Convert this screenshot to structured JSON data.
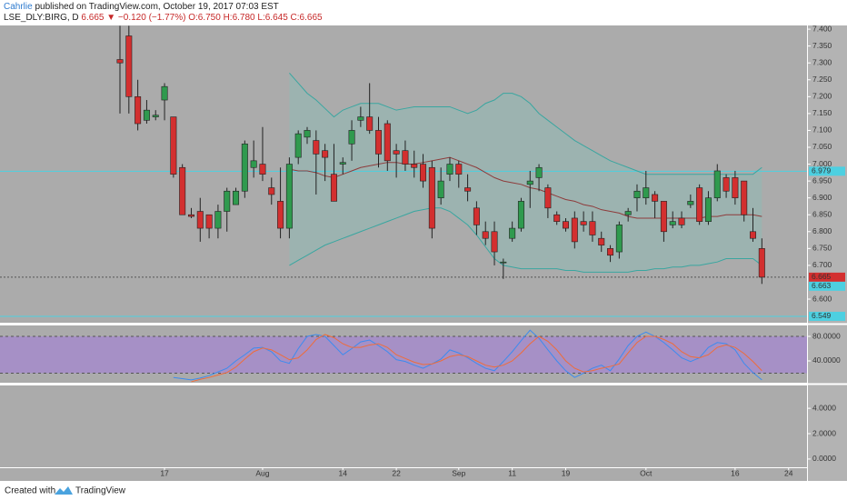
{
  "header": {
    "author": "Cahrlie",
    "published": "published on TradingView.com, October 19, 2017 07:03 EST",
    "symbol": "LSE_DLY:BIRG, D",
    "last": "6.665",
    "arrow": "▼",
    "change": "−0.120 (−1.77%)",
    "open": "O:6.750",
    "high": "H:6.780",
    "low": "L:6.645",
    "close": "C:6.665"
  },
  "footer": {
    "created": "Created with",
    "brand": "TradingView"
  },
  "chart_data": [
    {
      "type": "candlestick",
      "categories": [
        null,
        null,
        null,
        null,
        null,
        "17",
        null,
        null,
        null,
        null,
        null,
        null,
        null,
        null,
        null,
        null,
        "Aug",
        null,
        null,
        null,
        null,
        null,
        null,
        null,
        null,
        "14",
        null,
        null,
        null,
        null,
        null,
        "22",
        null,
        null,
        null,
        null,
        null,
        null,
        "Sep",
        null,
        null,
        null,
        null,
        null,
        "11",
        null,
        null,
        null,
        null,
        null,
        "19",
        null,
        null,
        null,
        null,
        null,
        null,
        null,
        null,
        "Oct",
        null,
        null,
        null,
        null,
        null,
        null,
        null,
        null,
        null,
        "16",
        null,
        null,
        null,
        null,
        null,
        "24",
        null
      ],
      "open": [
        7.31,
        7.38,
        7.2,
        7.13,
        7.14,
        7.19,
        7.14,
        6.99,
        6.85,
        6.86,
        6.85,
        6.81,
        6.86,
        6.88,
        6.92,
        6.99,
        7.0,
        6.93,
        6.89,
        6.81,
        7.02,
        7.08,
        7.07,
        7.04,
        6.97,
        7.0,
        7.06,
        7.13,
        7.14,
        7.1,
        7.12,
        7.04,
        7.04,
        7.0,
        7.0,
        6.99,
        6.9,
        6.97,
        7.0,
        6.93,
        6.87,
        6.8,
        6.8,
        6.71,
        6.78,
        6.81,
        6.94,
        6.96,
        6.93,
        6.85,
        6.83,
        6.84,
        6.83,
        6.83,
        6.78,
        6.75,
        6.74,
        6.85,
        6.9,
        6.9,
        6.91,
        6.89,
        6.82,
        6.84,
        6.88,
        6.93,
        6.83,
        6.9,
        6.96,
        6.96,
        6.95,
        6.8,
        6.75,
        null,
        null,
        null,
        null
      ],
      "high": [
        7.41,
        7.41,
        7.25,
        7.19,
        7.16,
        7.24,
        7.14,
        7.0,
        6.87,
        6.9,
        6.85,
        6.88,
        6.93,
        6.93,
        7.07,
        7.07,
        7.11,
        6.96,
        6.99,
        7.02,
        7.1,
        7.11,
        7.1,
        7.06,
        7.06,
        7.02,
        7.13,
        7.17,
        7.24,
        7.14,
        7.13,
        7.06,
        7.07,
        7.04,
        7.03,
        7.01,
        6.99,
        7.02,
        7.01,
        6.97,
        6.89,
        6.83,
        6.83,
        6.72,
        6.83,
        6.9,
        6.98,
        7.0,
        6.94,
        6.86,
        6.84,
        6.86,
        6.86,
        6.86,
        6.8,
        6.76,
        6.83,
        6.87,
        6.94,
        6.98,
        6.92,
        6.89,
        6.86,
        6.86,
        6.91,
        6.94,
        6.92,
        7.0,
        6.97,
        6.98,
        6.95,
        6.87,
        6.78,
        null,
        null,
        null,
        null
      ],
      "low": [
        7.15,
        7.15,
        7.1,
        7.12,
        7.13,
        7.13,
        6.96,
        6.85,
        6.84,
        6.77,
        6.78,
        6.78,
        6.8,
        6.88,
        6.9,
        6.96,
        6.95,
        6.88,
        6.78,
        6.78,
        7.0,
        7.06,
        6.91,
        6.95,
        6.89,
        6.97,
        7.01,
        7.11,
        7.09,
        6.99,
        6.98,
        6.96,
        6.98,
        6.96,
        6.93,
        6.78,
        6.88,
        6.95,
        6.93,
        6.89,
        6.79,
        6.76,
        6.7,
        6.66,
        6.77,
        6.8,
        6.87,
        6.92,
        6.84,
        6.82,
        6.8,
        6.75,
        6.8,
        6.77,
        6.74,
        6.71,
        6.72,
        6.83,
        6.86,
        6.88,
        6.84,
        6.77,
        6.81,
        6.81,
        6.87,
        6.82,
        6.82,
        6.89,
        6.9,
        6.88,
        6.83,
        6.77,
        6.645,
        null,
        null,
        null,
        null
      ],
      "close": [
        7.3,
        7.2,
        7.12,
        7.16,
        7.145,
        7.23,
        6.97,
        6.85,
        6.845,
        6.81,
        6.81,
        6.86,
        6.92,
        6.92,
        7.06,
        7.01,
        6.97,
        6.91,
        6.81,
        7.0,
        7.09,
        7.1,
        7.03,
        7.02,
        6.89,
        7.005,
        7.1,
        7.14,
        7.1,
        7.03,
        7.01,
        7.03,
        7.0,
        6.99,
        6.95,
        6.81,
        6.95,
        7.0,
        6.97,
        6.92,
        6.82,
        6.78,
        6.74,
        6.71,
        6.81,
        6.89,
        6.95,
        6.99,
        6.87,
        6.83,
        6.81,
        6.77,
        6.82,
        6.79,
        6.76,
        6.73,
        6.82,
        6.86,
        6.92,
        6.93,
        6.89,
        6.8,
        6.83,
        6.82,
        6.89,
        6.83,
        6.9,
        6.98,
        6.92,
        6.9,
        6.85,
        6.78,
        6.665,
        null,
        null,
        null,
        null
      ],
      "up_color": "#2f9a4e",
      "down_color": "#d32f2f",
      "overlays": [
        {
          "color": "#3aa6a0",
          "values": [
            null,
            null,
            null,
            null,
            null,
            null,
            null,
            null,
            null,
            null,
            null,
            null,
            null,
            null,
            null,
            null,
            null,
            null,
            null,
            7.27,
            7.24,
            7.21,
            7.19,
            7.165,
            7.14,
            7.16,
            7.17,
            7.18,
            7.18,
            7.18,
            7.17,
            7.16,
            7.165,
            7.17,
            7.17,
            7.17,
            7.17,
            7.17,
            7.16,
            7.15,
            7.16,
            7.18,
            7.19,
            7.21,
            7.21,
            7.2,
            7.18,
            7.15,
            7.13,
            7.11,
            7.09,
            7.07,
            7.055,
            7.04,
            7.025,
            7.01,
            7.0,
            6.99,
            6.98,
            6.97,
            6.97,
            6.97,
            6.97,
            6.97,
            6.97,
            6.97,
            6.97,
            6.97,
            6.97,
            6.97,
            6.97,
            6.97,
            6.99,
            null,
            null,
            null,
            null
          ]
        },
        {
          "color": "#8e3b3b",
          "values": [
            null,
            null,
            null,
            null,
            null,
            null,
            null,
            null,
            null,
            null,
            null,
            null,
            null,
            null,
            null,
            null,
            null,
            null,
            null,
            6.985,
            6.98,
            6.98,
            6.975,
            6.965,
            6.96,
            6.97,
            6.98,
            6.99,
            6.995,
            7.0,
            7.005,
            7.005,
            7.0,
            7.0,
            7.005,
            7.01,
            7.015,
            7.02,
            7.01,
            7.0,
            6.99,
            6.975,
            6.96,
            6.95,
            6.945,
            6.94,
            6.93,
            6.925,
            6.915,
            6.905,
            6.895,
            6.89,
            6.88,
            6.875,
            6.865,
            6.86,
            6.855,
            6.845,
            6.84,
            6.84,
            6.84,
            6.84,
            6.84,
            6.84,
            6.84,
            6.84,
            6.845,
            6.845,
            6.85,
            6.85,
            6.85,
            6.85,
            6.845,
            null,
            null,
            null,
            null
          ]
        },
        {
          "color": "#3aa6a0",
          "values": [
            null,
            null,
            null,
            null,
            null,
            null,
            null,
            null,
            null,
            null,
            null,
            null,
            null,
            null,
            null,
            null,
            null,
            null,
            null,
            6.7,
            6.715,
            6.73,
            6.745,
            6.76,
            6.77,
            6.78,
            6.79,
            6.8,
            6.81,
            6.82,
            6.83,
            6.84,
            6.85,
            6.86,
            6.865,
            6.87,
            6.87,
            6.86,
            6.84,
            6.82,
            6.79,
            6.755,
            6.72,
            6.7,
            6.695,
            6.69,
            6.69,
            6.69,
            6.69,
            6.69,
            6.685,
            6.685,
            6.68,
            6.68,
            6.68,
            6.68,
            6.68,
            6.68,
            6.685,
            6.685,
            6.69,
            6.69,
            6.695,
            6.695,
            6.7,
            6.7,
            6.705,
            6.71,
            6.72,
            6.72,
            6.72,
            6.72,
            6.7,
            null,
            null,
            null,
            null
          ]
        }
      ],
      "band_fill": "rgba(120,200,190,0.28)",
      "ylim": [
        6.53,
        7.411
      ],
      "yticks": [
        {
          "value": 7.4,
          "label": "7.400"
        },
        {
          "value": 7.35,
          "label": "7.350"
        },
        {
          "value": 7.3,
          "label": "7.300"
        },
        {
          "value": 7.25,
          "label": "7.250"
        },
        {
          "value": 7.2,
          "label": "7.200"
        },
        {
          "value": 7.15,
          "label": "7.150"
        },
        {
          "value": 7.1,
          "label": "7.100"
        },
        {
          "value": 7.05,
          "label": "7.050"
        },
        {
          "value": 7.0,
          "label": "7.000"
        },
        {
          "value": 6.95,
          "label": "6.950"
        },
        {
          "value": 6.9,
          "label": "6.900"
        },
        {
          "value": 6.85,
          "label": "6.850"
        },
        {
          "value": 6.8,
          "label": "6.800"
        },
        {
          "value": 6.75,
          "label": "6.750"
        },
        {
          "value": 6.7,
          "label": "6.700"
        },
        {
          "value": 6.6,
          "label": "6.600"
        }
      ],
      "levels": [
        {
          "value": 6.979,
          "label": "6.979",
          "color": "#4dd0e1",
          "style": "solid"
        },
        {
          "value": 6.665,
          "label": "6.665",
          "color": "#d32f2f",
          "style": "dashed"
        },
        {
          "value": 6.663,
          "label": "6.663",
          "color": "#4dd0e1",
          "style": "none"
        },
        {
          "value": 6.549,
          "label": "6.549",
          "color": "#4dd0e1",
          "style": "solid"
        }
      ]
    },
    {
      "type": "line",
      "series": [
        {
          "color": "#3d8bef",
          "values": [
            null,
            null,
            null,
            null,
            null,
            null,
            13,
            11,
            9,
            12,
            16,
            22,
            28,
            40,
            50,
            61,
            62,
            55,
            40,
            36,
            60,
            80,
            83,
            80,
            65,
            50,
            60,
            71,
            74,
            65,
            55,
            42,
            39,
            33,
            28,
            35,
            43,
            58,
            53,
            45,
            36,
            28,
            24,
            39,
            55,
            73,
            90,
            77,
            58,
            40,
            24,
            13,
            20,
            28,
            33,
            24,
            43,
            65,
            80,
            87,
            80,
            70,
            58,
            45,
            39,
            45,
            62,
            70,
            68,
            58,
            36,
            21,
            9,
            null,
            null,
            null,
            null
          ]
        },
        {
          "color": "#ef6c3a",
          "values": [
            null,
            null,
            null,
            null,
            null,
            null,
            null,
            null,
            6,
            10,
            13,
            17,
            21,
            30,
            43,
            55,
            61,
            58,
            50,
            42,
            45,
            58,
            75,
            83,
            78,
            68,
            62,
            62,
            66,
            68,
            62,
            50,
            44,
            38,
            34,
            35,
            40,
            47,
            50,
            47,
            40,
            33,
            30,
            33,
            40,
            53,
            68,
            80,
            72,
            58,
            40,
            28,
            22,
            24,
            28,
            31,
            35,
            53,
            70,
            80,
            80,
            75,
            68,
            55,
            47,
            45,
            50,
            62,
            66,
            62,
            52,
            39,
            24,
            null,
            null,
            null,
            null
          ]
        }
      ],
      "band": [
        20,
        80
      ],
      "band_color": "rgba(160,110,230,0.45)",
      "ylim": [
        4.4,
        97.8
      ],
      "yticks": [
        {
          "value": 80,
          "label": "80.0000"
        },
        {
          "value": 40,
          "label": "40.0000"
        }
      ]
    },
    {
      "type": "line",
      "series": [],
      "ylim": [
        -0.65,
        5.8
      ],
      "yticks": [
        {
          "value": 4,
          "label": "4.0000"
        },
        {
          "value": 2,
          "label": "2.0000"
        },
        {
          "value": 0,
          "label": "0.0000"
        }
      ]
    }
  ]
}
